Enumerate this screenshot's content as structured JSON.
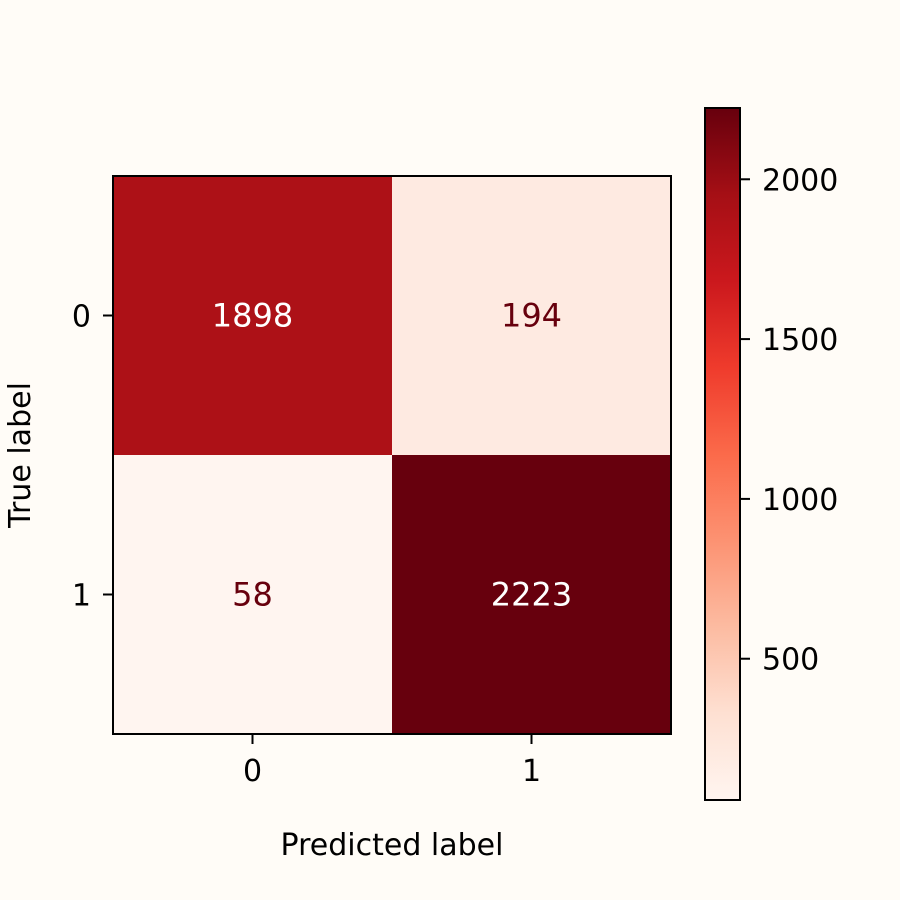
{
  "chart_data": {
    "type": "heatmap",
    "title": "",
    "xlabel": "Predicted label",
    "ylabel": "True label",
    "x_categories": [
      "0",
      "1"
    ],
    "y_categories": [
      "0",
      "1"
    ],
    "values": [
      [
        1898,
        194
      ],
      [
        58,
        2223
      ]
    ],
    "colormap": "Reds",
    "color_range": [
      58,
      2223
    ],
    "colorbar_ticks": [
      500,
      1000,
      1500,
      2000
    ],
    "background_color": "#fffcf7",
    "dark_text_color": "#67000d",
    "light_text_color": "#ffffff"
  }
}
